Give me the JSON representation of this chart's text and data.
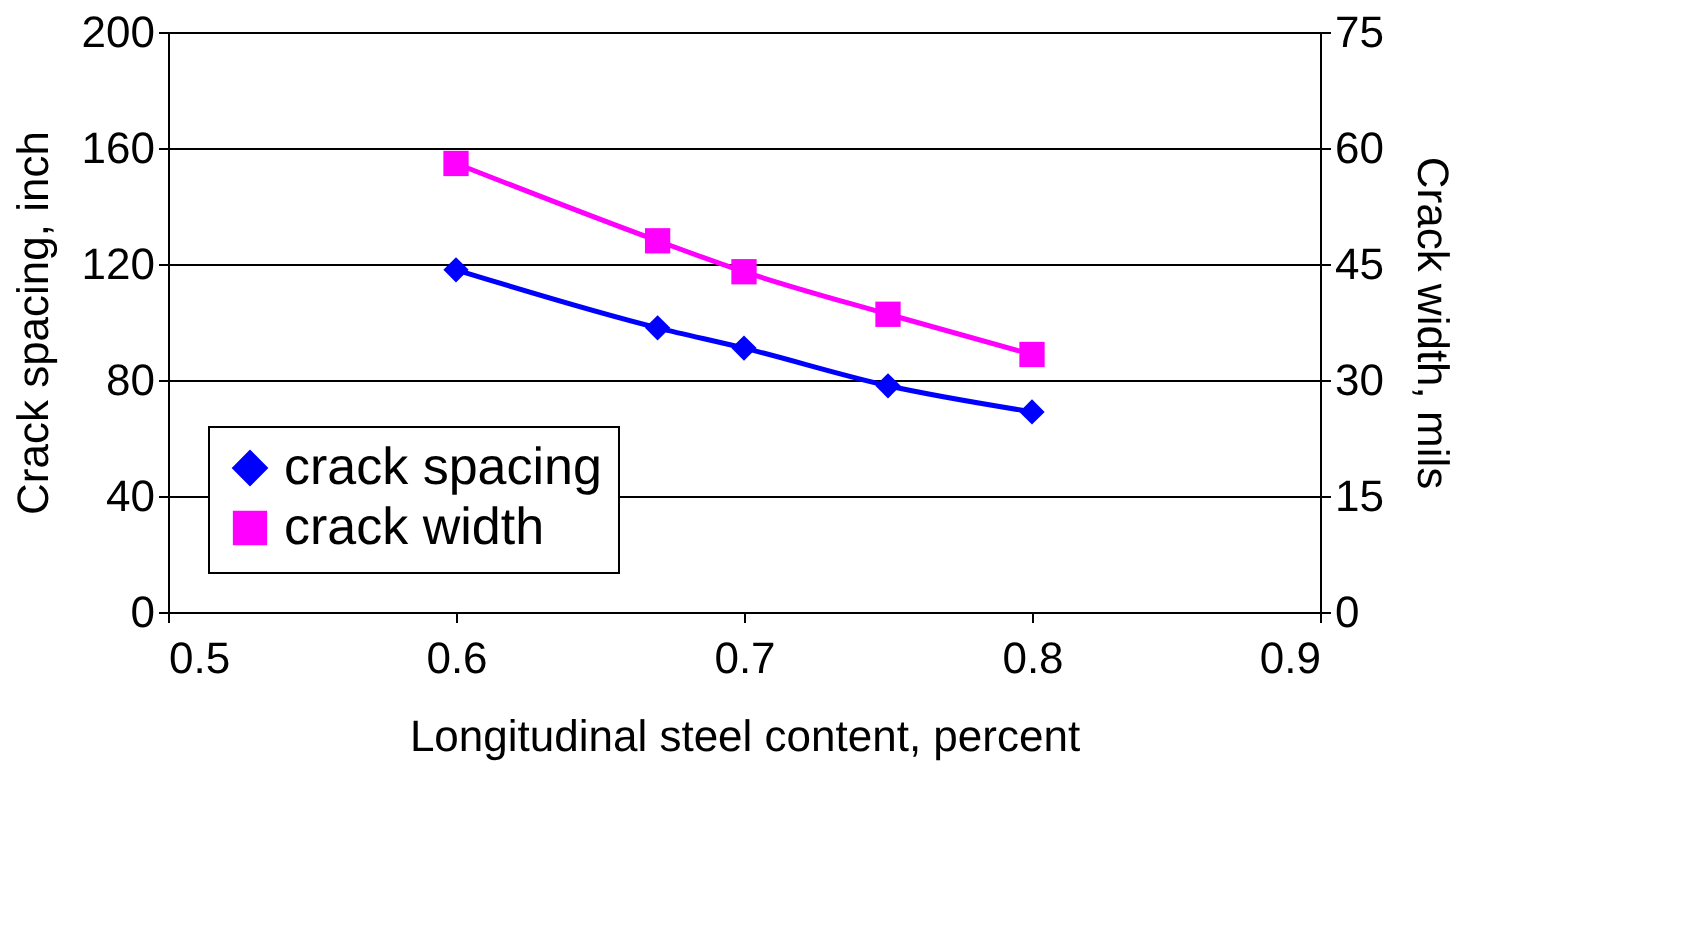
{
  "chart_data": {
    "type": "line",
    "xlabel": "Longitudinal steel content, percent",
    "ylabel": "Crack spacing, inch",
    "y2label": "Crack width, mils",
    "x": [
      0.6,
      0.67,
      0.7,
      0.75,
      0.8
    ],
    "series": [
      {
        "name": "crack spacing",
        "color": "#0000ff",
        "marker": "diamond",
        "values": [
          118,
          98,
          91,
          78,
          69
        ]
      },
      {
        "name": "crack width",
        "color": "#ff00ff",
        "marker": "square",
        "axis": "y2",
        "values": [
          58,
          48,
          44,
          38.5,
          33.3
        ]
      }
    ],
    "xlim": [
      0.5,
      0.9
    ],
    "xticks": [
      0.5,
      0.6,
      0.7,
      0.8,
      0.9
    ],
    "ylim": [
      0,
      200
    ],
    "yticks": [
      0,
      40,
      80,
      120,
      160,
      200
    ],
    "y2lim": [
      0,
      75
    ],
    "y2ticks": [
      0,
      15,
      30,
      45,
      60,
      75
    ],
    "grid": "y",
    "legend": "bottom left"
  }
}
